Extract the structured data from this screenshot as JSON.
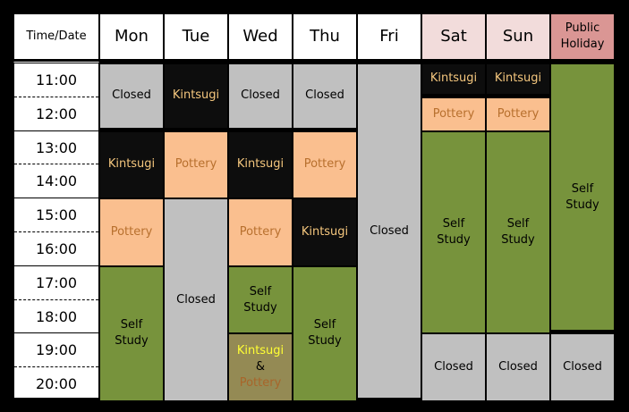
{
  "header": {
    "time_label": "Time/Date"
  },
  "times": [
    "11:00",
    "12:00",
    "13:00",
    "14:00",
    "15:00",
    "16:00",
    "17:00",
    "18:00",
    "19:00",
    "20:00"
  ],
  "colors": {
    "closed": "#c0c0c0",
    "kintsugi_bg": "#0d0d0d",
    "kintsugi_text": "#f5c77e",
    "pottery_bg": "#fabf8f",
    "self_study": "#77933c",
    "weekend_header": "#f2dcdb",
    "holiday_header": "#da9694",
    "combo_bg": "#948a54"
  },
  "days": [
    {
      "label": "Mon",
      "header_color": "#ffffff",
      "blocks": [
        {
          "type": "closed",
          "label": "Closed",
          "from": "11:00",
          "to": "13:00"
        },
        {
          "type": "kintsugi",
          "label": "Kintsugi",
          "from": "13:00",
          "to": "15:00"
        },
        {
          "type": "pottery",
          "label": "Pottery",
          "from": "15:00",
          "to": "17:00"
        },
        {
          "type": "self",
          "label": "Self\nStudy",
          "from": "17:00",
          "to": "21:00"
        }
      ]
    },
    {
      "label": "Tue",
      "header_color": "#ffffff",
      "blocks": [
        {
          "type": "kintsugi",
          "label": "Kintsugi",
          "from": "11:00",
          "to": "13:00"
        },
        {
          "type": "pottery",
          "label": "Pottery",
          "from": "13:00",
          "to": "15:00"
        },
        {
          "type": "closed",
          "label": "Closed",
          "from": "15:00",
          "to": "21:00"
        }
      ]
    },
    {
      "label": "Wed",
      "header_color": "#ffffff",
      "blocks": [
        {
          "type": "closed",
          "label": "Closed",
          "from": "11:00",
          "to": "13:00"
        },
        {
          "type": "kintsugi",
          "label": "Kintsugi",
          "from": "13:00",
          "to": "15:00"
        },
        {
          "type": "pottery",
          "label": "Pottery",
          "from": "15:00",
          "to": "17:00"
        },
        {
          "type": "self",
          "label": "Self\nStudy",
          "from": "17:00",
          "to": "19:00"
        },
        {
          "type": "combo",
          "label": "Kintsugi\n&\nPottery",
          "from": "19:00",
          "to": "21:00"
        }
      ]
    },
    {
      "label": "Thu",
      "header_color": "#ffffff",
      "blocks": [
        {
          "type": "closed",
          "label": "Closed",
          "from": "11:00",
          "to": "13:00"
        },
        {
          "type": "pottery",
          "label": "Pottery",
          "from": "13:00",
          "to": "15:00"
        },
        {
          "type": "kintsugi",
          "label": "Kintsugi",
          "from": "15:00",
          "to": "17:00"
        },
        {
          "type": "self",
          "label": "Self\nStudy",
          "from": "17:00",
          "to": "21:00"
        }
      ]
    },
    {
      "label": "Fri",
      "header_color": "#ffffff",
      "blocks": [
        {
          "type": "closed",
          "label": "Closed",
          "from": "11:00",
          "to": "21:00"
        }
      ]
    },
    {
      "label": "Sat",
      "header_color": "#f2dcdb",
      "blocks": [
        {
          "type": "kintsugi",
          "label": "Kintsugi",
          "from": "11:00",
          "to": "12:00"
        },
        {
          "type": "pottery",
          "label": "Pottery",
          "from": "12:00",
          "to": "13:00"
        },
        {
          "type": "self",
          "label": "Self\nStudy",
          "from": "13:00",
          "to": "19:00"
        },
        {
          "type": "closed",
          "label": "Closed",
          "from": "19:00",
          "to": "21:00"
        }
      ]
    },
    {
      "label": "Sun",
      "header_color": "#f2dcdb",
      "blocks": [
        {
          "type": "kintsugi",
          "label": "Kintsugi",
          "from": "11:00",
          "to": "12:00"
        },
        {
          "type": "pottery",
          "label": "Pottery",
          "from": "12:00",
          "to": "13:00"
        },
        {
          "type": "self",
          "label": "Self\nStudy",
          "from": "13:00",
          "to": "19:00"
        },
        {
          "type": "closed",
          "label": "Closed",
          "from": "19:00",
          "to": "21:00"
        }
      ]
    },
    {
      "label": "Public\nHoliday",
      "header_color": "#da9694",
      "blocks": [
        {
          "type": "self",
          "label": "Self\nStudy",
          "from": "11:00",
          "to": "19:00"
        },
        {
          "type": "closed",
          "label": "Closed",
          "from": "19:00",
          "to": "21:00"
        }
      ]
    }
  ]
}
